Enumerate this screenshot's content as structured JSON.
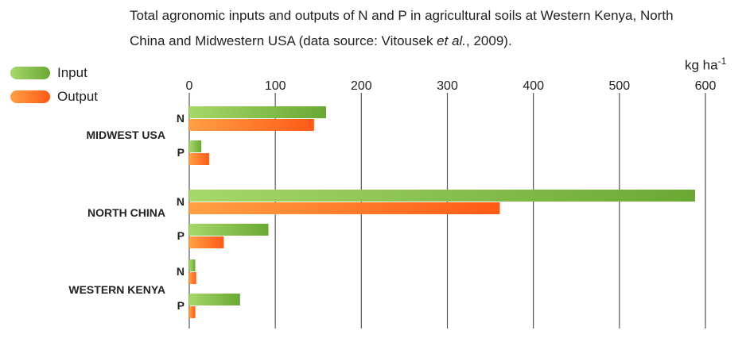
{
  "title": {
    "line1": "Total agronomic inputs and outputs of N and P in agricultural soils at Western Kenya, North",
    "line2_prefix": "China and Midwestern USA (data source: Vitousek ",
    "line2_italic": "et al.",
    "line2_suffix": ", 2009)."
  },
  "legend": [
    {
      "label": "Input",
      "color": "#8cc63f"
    },
    {
      "label": "Output",
      "color": "#ff6a1f"
    }
  ],
  "unit": {
    "base": "kg ha",
    "exp": "-1"
  },
  "colors": {
    "input_light": "#a6d86b",
    "input_dark": "#6aa834",
    "output_light": "#ffa046",
    "output_dark": "#ff5a16",
    "grid": "#555555"
  },
  "chart_data": {
    "type": "bar",
    "orientation": "horizontal",
    "xlim": [
      0,
      600
    ],
    "xticks": [
      0,
      100,
      200,
      300,
      400,
      500,
      600
    ],
    "grid": true,
    "legend_position": "top-left",
    "groups": [
      {
        "region": "MIDWEST USA",
        "items": [
          {
            "nutrient": "N",
            "input": 159,
            "output": 145
          },
          {
            "nutrient": "P",
            "input": 14,
            "output": 23
          }
        ]
      },
      {
        "region": "NORTH CHINA",
        "items": [
          {
            "nutrient": "N",
            "input": 588,
            "output": 361
          },
          {
            "nutrient": "P",
            "input": 92,
            "output": 40
          }
        ]
      },
      {
        "region": "WESTERN KENYA",
        "items": [
          {
            "nutrient": "N",
            "input": 7,
            "output": 8
          },
          {
            "nutrient": "P",
            "input": 59,
            "output": 7
          }
        ]
      }
    ],
    "series": [
      {
        "name": "Input"
      },
      {
        "name": "Output"
      }
    ]
  }
}
